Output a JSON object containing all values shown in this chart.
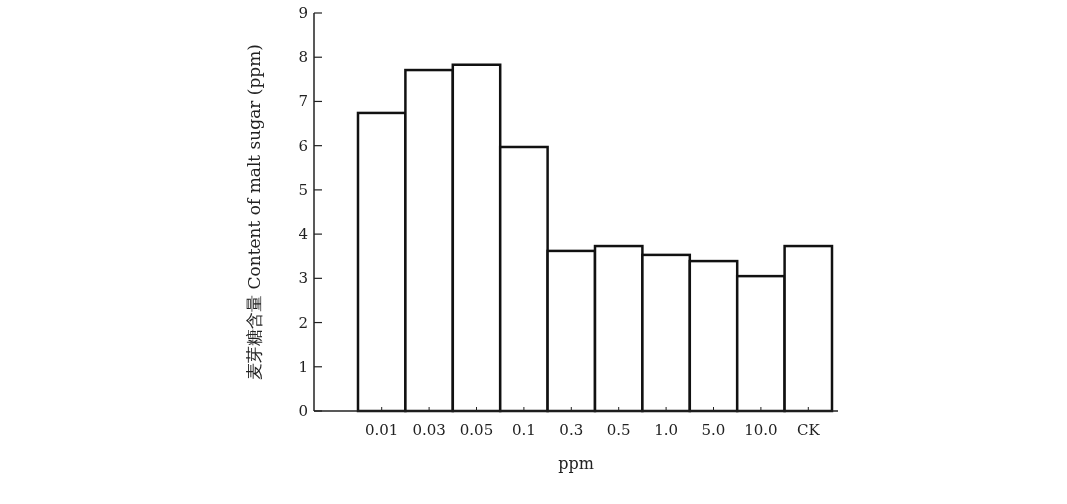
{
  "chart_data": {
    "type": "bar",
    "xlabel": "ppm",
    "ylabel": "麦芽糖含量 Content of malt sugar (ppm)",
    "categories": [
      "0.01",
      "0.03",
      "0.05",
      "0.1",
      "0.3",
      "0.5",
      "1.0",
      "5.0",
      "10.0",
      "CK"
    ],
    "values": [
      6.74,
      7.71,
      7.83,
      5.97,
      3.62,
      3.73,
      3.53,
      3.39,
      3.05,
      3.73
    ],
    "color": "#ffffff",
    "ylim": [
      0,
      9
    ],
    "yticks": [
      0,
      1,
      2,
      3,
      4,
      5,
      6,
      7,
      8,
      9
    ],
    "grid": false
  }
}
